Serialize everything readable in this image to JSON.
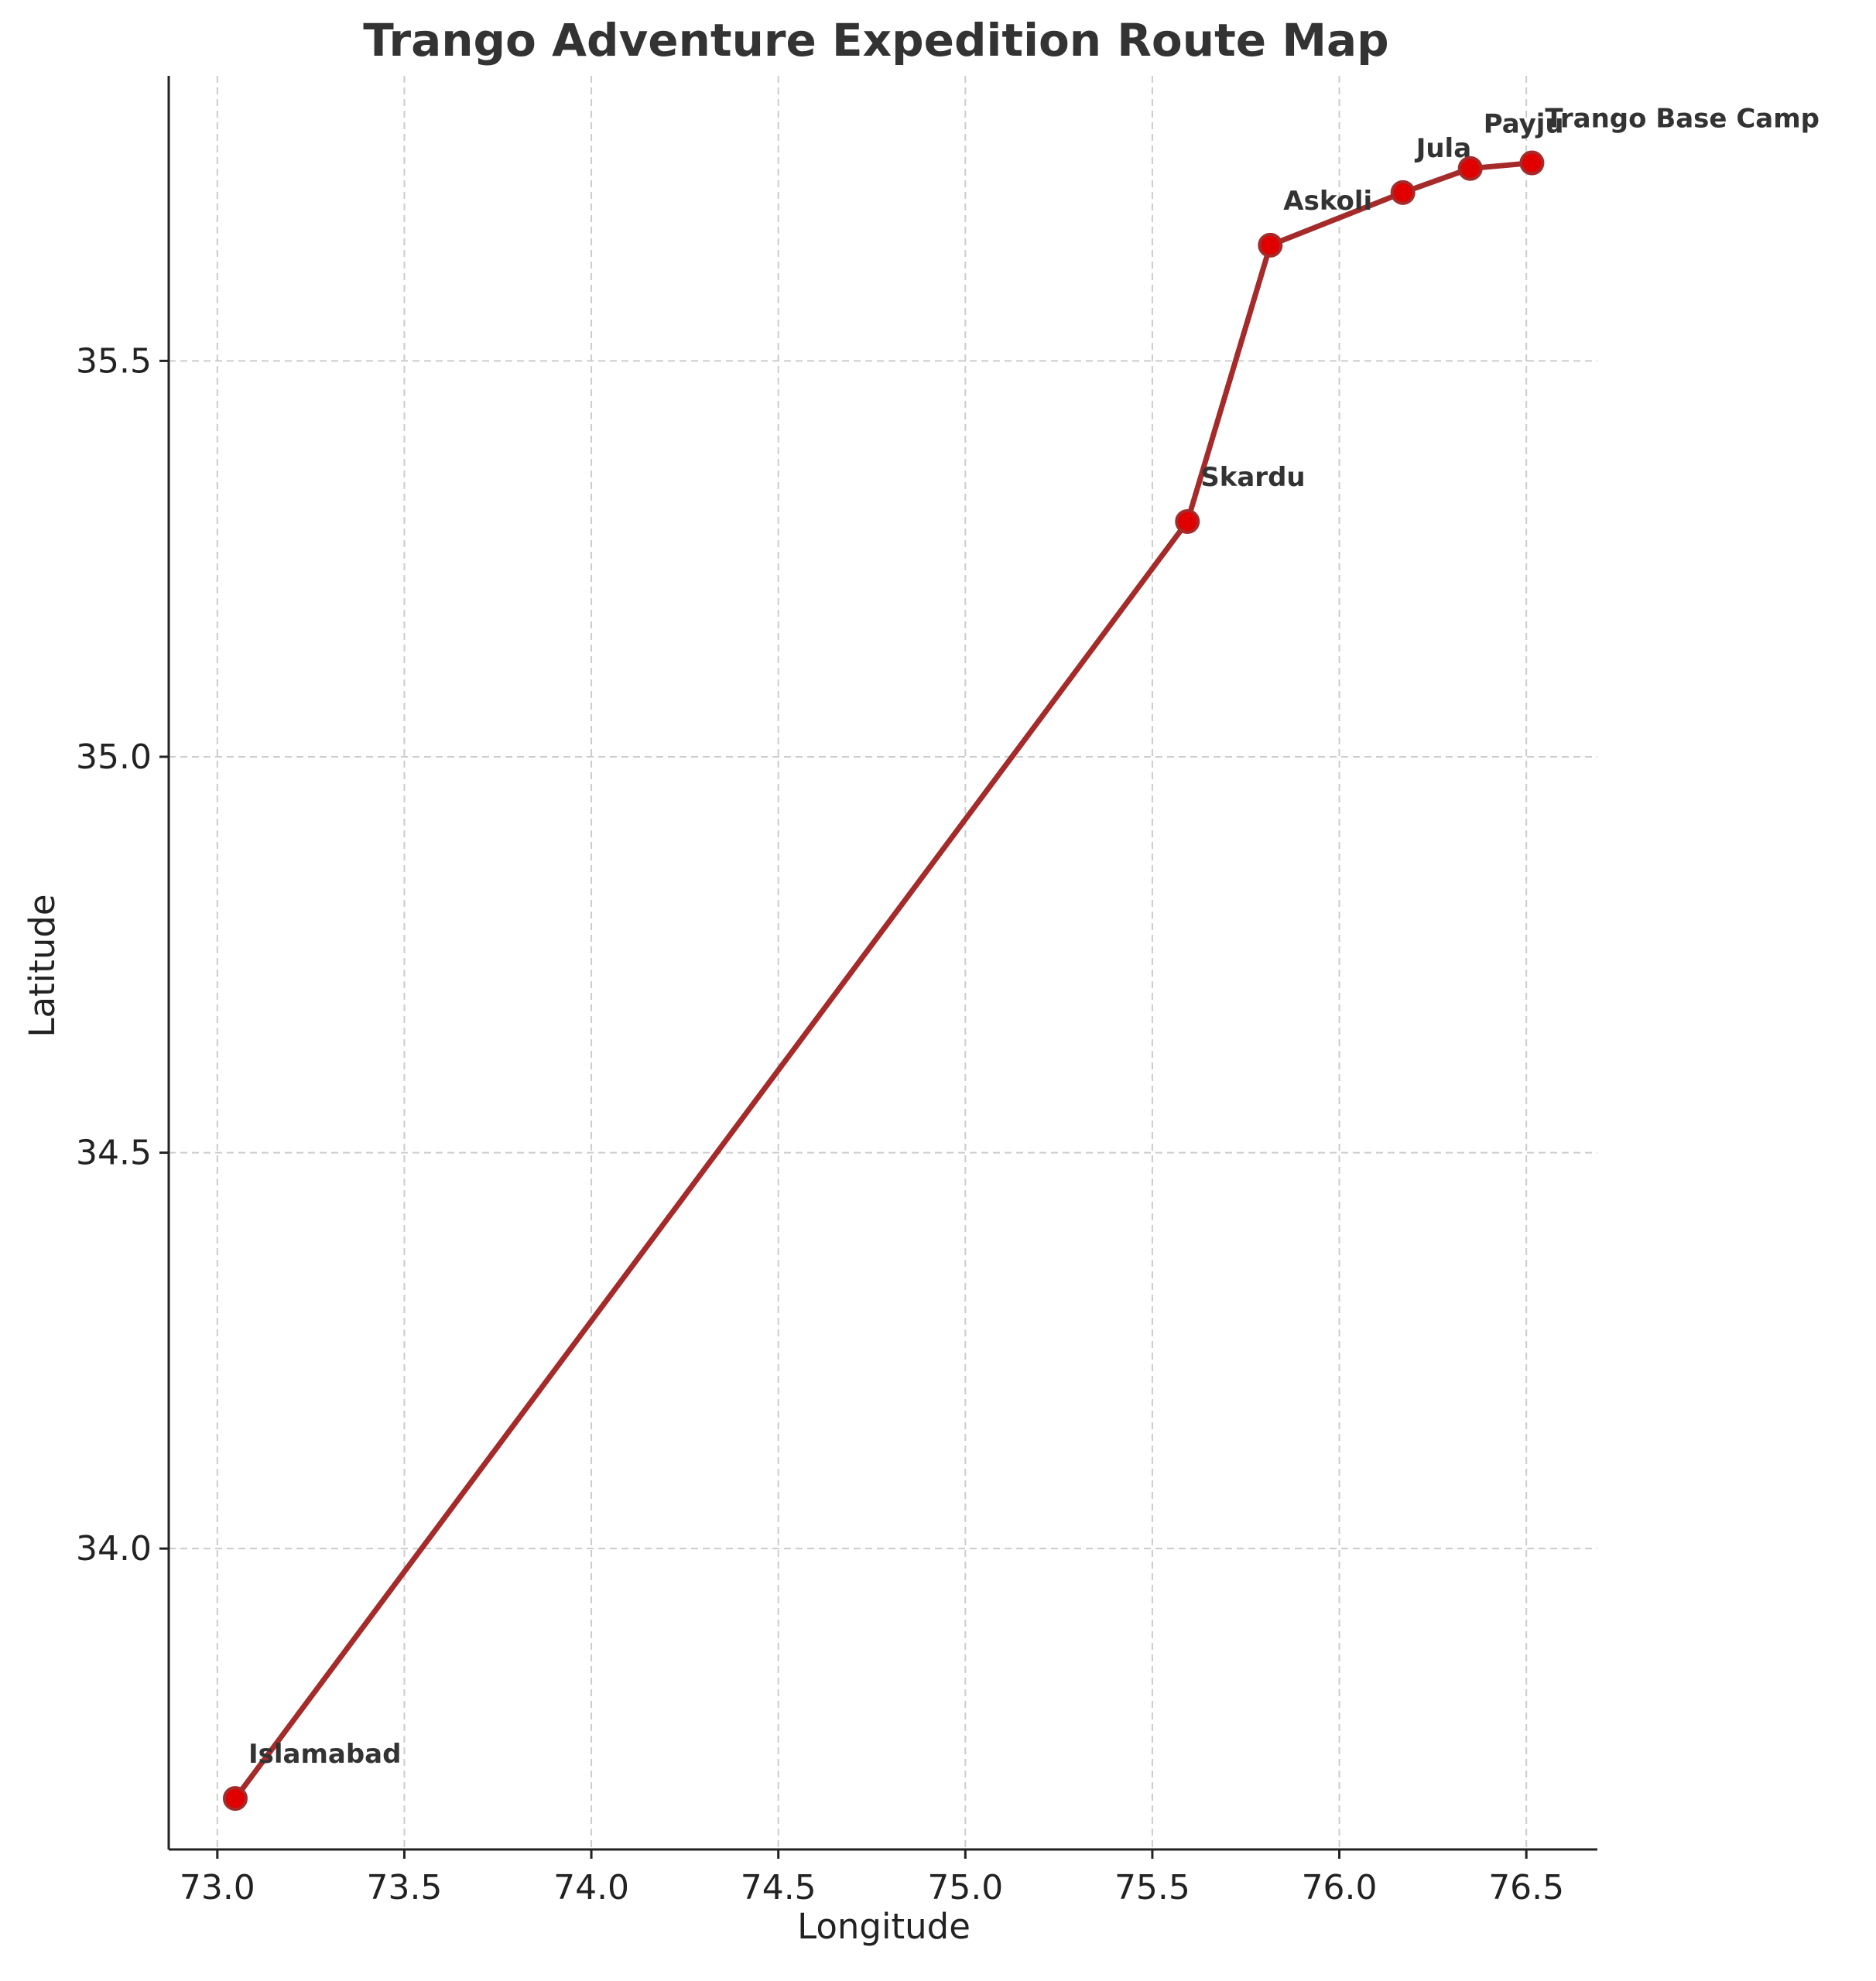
{
  "chart_data": {
    "type": "line",
    "title": "Trango Adventure Expedition Route Map",
    "xlabel": "Longitude",
    "ylabel": "Latitude",
    "xlim": [
      72.87,
      76.69
    ],
    "ylim": [
      33.62,
      35.86
    ],
    "xticks": [
      "73.0",
      "73.5",
      "74.0",
      "74.5",
      "75.0",
      "75.5",
      "76.0",
      "76.5"
    ],
    "xtick_values": [
      73.0,
      73.5,
      74.0,
      74.5,
      75.0,
      75.5,
      76.0,
      76.5
    ],
    "yticks": [
      "34.0",
      "34.5",
      "35.0",
      "35.5"
    ],
    "ytick_values": [
      34.0,
      34.5,
      35.0,
      35.5
    ],
    "grid": true,
    "series": [
      {
        "points": [
          {
            "name": "Islamabad",
            "x": 73.0479,
            "y": 33.6844
          },
          {
            "name": "Skardu",
            "x": 75.5938,
            "y": 35.2971
          },
          {
            "name": "Askoli",
            "x": 75.8153,
            "y": 35.6461
          },
          {
            "name": "Jula",
            "x": 76.17,
            "y": 35.7126
          },
          {
            "name": "Payju",
            "x": 76.35,
            "y": 35.743
          },
          {
            "name": "Trango Base Camp",
            "x": 76.515,
            "y": 35.75
          }
        ]
      }
    ],
    "colors": {
      "line": "#a52a2a",
      "marker": "#e00000",
      "grid": "#cccccc",
      "text": "#333333"
    }
  }
}
